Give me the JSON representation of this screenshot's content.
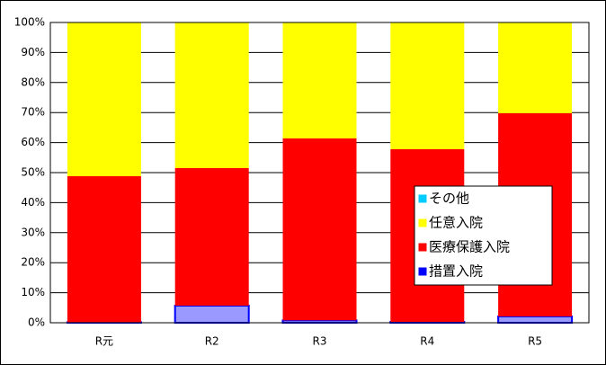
{
  "chart_data": {
    "type": "stacked_bar",
    "categories": [
      "R元",
      "R2",
      "R3",
      "R4",
      "R5"
    ],
    "series": [
      {
        "name": "措置入院",
        "color": "#9999ff",
        "edgecolor": "#0000ff",
        "values": [
          0.2,
          5.7,
          0.8,
          0.3,
          2.1
        ]
      },
      {
        "name": "医療保護入院",
        "color": "#ff0000",
        "values": [
          48.6,
          45.8,
          60.6,
          57.5,
          67.7
        ]
      },
      {
        "name": "任意入院",
        "color": "#ffff00",
        "values": [
          51.2,
          48.5,
          38.6,
          42.2,
          30.2
        ]
      },
      {
        "name": "その他",
        "color": "#00ccff",
        "values": [
          0,
          0,
          0,
          0,
          0
        ]
      }
    ],
    "ylim": [
      0,
      100
    ],
    "yticks": [
      {
        "value": 0,
        "label": "0%"
      },
      {
        "value": 10,
        "label": "10%"
      },
      {
        "value": 20,
        "label": "20%"
      },
      {
        "value": 30,
        "label": "30%"
      },
      {
        "value": 40,
        "label": "40%"
      },
      {
        "value": 50,
        "label": "50%"
      },
      {
        "value": 60,
        "label": "60%"
      },
      {
        "value": 70,
        "label": "70%"
      },
      {
        "value": 80,
        "label": "80%"
      },
      {
        "value": 90,
        "label": "90%"
      },
      {
        "value": 100,
        "label": "100%"
      }
    ],
    "grid": true,
    "legend": "lower right"
  }
}
